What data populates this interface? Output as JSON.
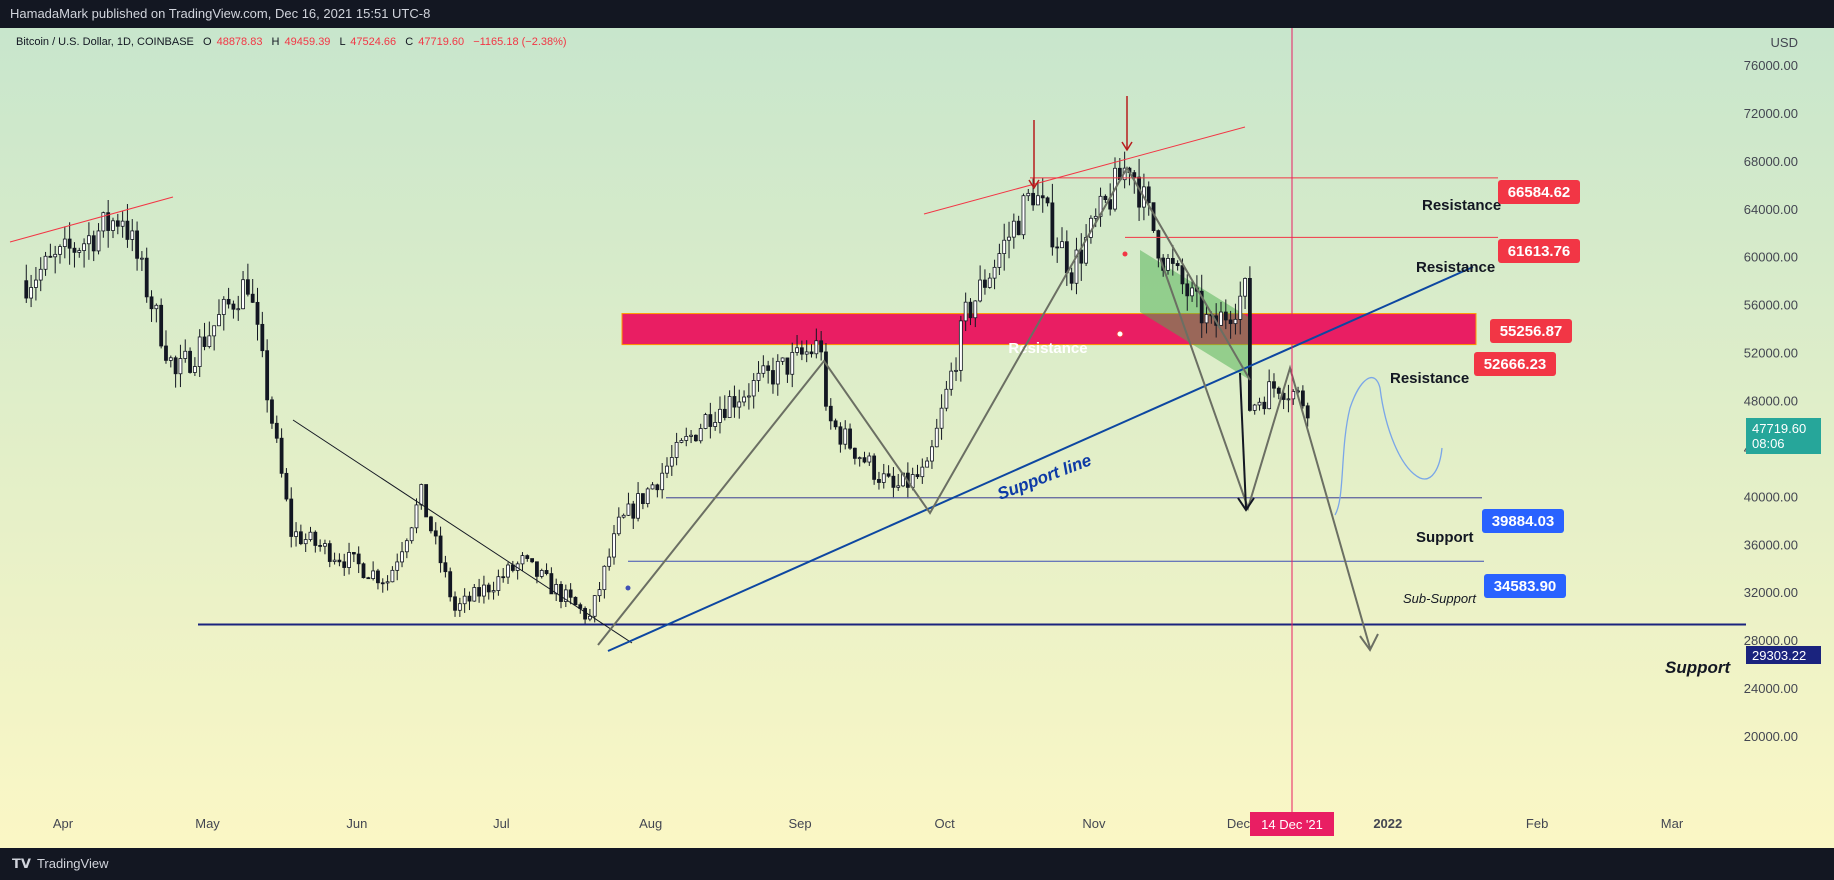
{
  "header": {
    "publisher": "HamadaMark published on TradingView.com, Dec 16, 2021 15:51 UTC-8"
  },
  "footer": {
    "brand": "TradingView"
  },
  "symbol": {
    "title": "Bitcoin / U.S. Dollar, 1D, COINBASE",
    "open_label": "O",
    "open": "48878.83",
    "high_label": "H",
    "high": "49459.39",
    "low_label": "L",
    "low": "47524.66",
    "close_label": "C",
    "close": "47719.60",
    "change": "−1165.18 (−2.38%)",
    "currency": "USD"
  },
  "price_scale": {
    "ticks": [
      "76000.00",
      "72000.00",
      "68000.00",
      "64000.00",
      "60000.00",
      "56000.00",
      "52000.00",
      "48000.00",
      "44000.00",
      "40000.00",
      "36000.00",
      "32000.00",
      "28000.00",
      "24000.00",
      "20000.00"
    ],
    "current_price": "47719.60",
    "countdown": "08:06",
    "support_tag": "29303.22"
  },
  "time_axis": {
    "labels": [
      "Apr",
      "May",
      "Jun",
      "Jul",
      "Aug",
      "Sep",
      "Oct",
      "Nov",
      "Dec",
      "2022",
      "Feb",
      "Mar"
    ],
    "crosshair_date": "14 Dec '21"
  },
  "annotations": {
    "resistance_1": "Resistance",
    "resistance_2": "Resistance",
    "resistance_3": "Resistance",
    "resistance_zone": "Resistance",
    "support_1": "Support",
    "sub_support": "Sub-Support",
    "support_main": "Support",
    "support_line": "Support line",
    "level_66584": "66584.62",
    "level_61613": "61613.76",
    "level_55256": "55256.87",
    "level_52666": "52666.23",
    "level_39884": "39884.03",
    "level_34583": "34583.90"
  },
  "colors": {
    "bg_top": "#c8e6cc",
    "bg_bottom": "#fbf7c5",
    "red_label": "#f23645",
    "blue_label": "#2962ff",
    "zone": "#e91e63",
    "navy": "#1a237e",
    "current_price": "#26a69a"
  },
  "chart_data": {
    "type": "candlestick",
    "title": "Bitcoin / U.S. Dollar, 1D, COINBASE",
    "y_unit": "USD",
    "ylim": [
      17000,
      80000
    ],
    "x_range": [
      "2021-03-25",
      "2022-03-20"
    ],
    "grid": false,
    "price_path": [
      {
        "date": "2021-03-25",
        "price": 58000
      },
      {
        "date": "2021-04-14",
        "price": 63500
      },
      {
        "date": "2021-04-25",
        "price": 50000
      },
      {
        "date": "2021-05-10",
        "price": 58000
      },
      {
        "date": "2021-05-19",
        "price": 37000
      },
      {
        "date": "2021-06-08",
        "price": 33000
      },
      {
        "date": "2021-06-15",
        "price": 40000
      },
      {
        "date": "2021-06-22",
        "price": 30500
      },
      {
        "date": "2021-07-06",
        "price": 34500
      },
      {
        "date": "2021-07-20",
        "price": 29800
      },
      {
        "date": "2021-07-26",
        "price": 37500
      },
      {
        "date": "2021-08-14",
        "price": 47000
      },
      {
        "date": "2021-09-06",
        "price": 52700
      },
      {
        "date": "2021-09-07",
        "price": 46500
      },
      {
        "date": "2021-09-21",
        "price": 40500
      },
      {
        "date": "2021-09-28",
        "price": 42000
      },
      {
        "date": "2021-10-06",
        "price": 55000
      },
      {
        "date": "2021-10-20",
        "price": 65500
      },
      {
        "date": "2021-10-28",
        "price": 59000
      },
      {
        "date": "2021-11-09",
        "price": 68000
      },
      {
        "date": "2021-11-16",
        "price": 60000
      },
      {
        "date": "2021-11-26",
        "price": 54000
      },
      {
        "date": "2021-12-03",
        "price": 57000
      },
      {
        "date": "2021-12-04",
        "price": 47500
      },
      {
        "date": "2021-12-10",
        "price": 49500
      },
      {
        "date": "2021-12-16",
        "price": 47719.6
      }
    ],
    "levels": [
      66584.62,
      61613.76,
      55256.87,
      52666.23,
      39884.03,
      34583.9,
      29303.22
    ],
    "current_price": 47719.6
  }
}
